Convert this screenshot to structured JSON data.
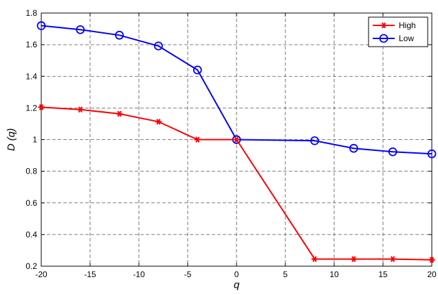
{
  "chart_data": {
    "type": "line",
    "xlabel": "q",
    "ylabel": "D (q)",
    "xlim": [
      -20,
      20
    ],
    "ylim": [
      0.2,
      1.8
    ],
    "xticks": [
      "-20",
      "-15",
      "-10",
      "-5",
      "0",
      "5",
      "10",
      "15",
      "20"
    ],
    "yticks": [
      "0.2",
      "0.4",
      "0.6",
      "0.8",
      "1",
      "1.2",
      "1.4",
      "1.6",
      "1.8"
    ],
    "grid": true,
    "legend_position": "top-right",
    "series": [
      {
        "name": "High",
        "color": "#ff0000",
        "marker": "asterisk",
        "x": [
          -20,
          -16,
          -12,
          -8,
          -4,
          0,
          8,
          12,
          16,
          20
        ],
        "y": [
          1.205,
          1.19,
          1.163,
          1.113,
          1.0,
          1.0,
          0.245,
          0.245,
          0.245,
          0.24
        ]
      },
      {
        "name": "Low",
        "color": "#0000ff",
        "marker": "circle",
        "x": [
          -20,
          -16,
          -12,
          -8,
          -4,
          0,
          8,
          12,
          16,
          20
        ],
        "y": [
          1.72,
          1.695,
          1.66,
          1.592,
          1.44,
          1.0,
          0.993,
          0.945,
          0.923,
          0.91
        ]
      }
    ]
  }
}
